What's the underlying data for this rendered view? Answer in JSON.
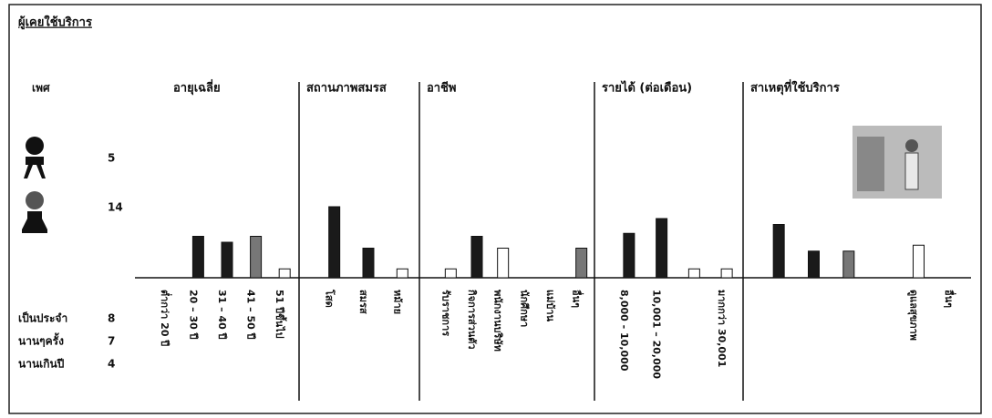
{
  "title": "ผู้เคยใช้บริการ",
  "gender": {
    "label": "เพศ",
    "counts": [
      5,
      14
    ]
  },
  "frequency": [
    {
      "label": "เป็นประจำ",
      "count": 8
    },
    {
      "label": "นานๆครั้ง",
      "count": 7
    },
    {
      "label": "นานเกินปี",
      "count": 4
    }
  ],
  "panels": [
    {
      "title": "อายุเฉลี่ย",
      "bars": [
        {
          "label": "ต่ำกว่า 20 ปี",
          "value": 0,
          "color": "#1a1a1a"
        },
        {
          "label": "20 – 30 ปี",
          "value": 7,
          "color": "#1a1a1a"
        },
        {
          "label": "31 – 40 ปี",
          "value": 6,
          "color": "#1a1a1a"
        },
        {
          "label": "41 – 50 ปี",
          "value": 7,
          "color": "#777777"
        },
        {
          "label": "51 ปีขึ้นไป",
          "value": 1.5,
          "color": "#ffffff"
        }
      ]
    },
    {
      "title": "สถานภาพสมรส",
      "bars": [
        {
          "label": "โสด",
          "value": 12,
          "color": "#1a1a1a"
        },
        {
          "label": "สมรส",
          "value": 5,
          "color": "#1a1a1a"
        },
        {
          "label": "หม้าย",
          "value": 1.5,
          "color": "#ffffff"
        }
      ]
    },
    {
      "title": "อาชีพ",
      "bars": [
        {
          "label": "รับราชการ",
          "value": 1.5,
          "color": "#ffffff"
        },
        {
          "label": "กิจการส่วนตัว",
          "value": 7,
          "color": "#1a1a1a"
        },
        {
          "label": "พนักงานบริษัท",
          "value": 5,
          "color": "#ffffff"
        },
        {
          "label": "นักศึกษา",
          "value": 0,
          "color": "#1a1a1a"
        },
        {
          "label": "แม่บ้าน",
          "value": 0,
          "color": "#1a1a1a"
        },
        {
          "label": "อื่นๆ",
          "value": 5,
          "color": "#777777"
        }
      ]
    },
    {
      "title": "รายได้ (ต่อเดือน)",
      "bars": [
        {
          "label": "8,000 - 10,000",
          "value": 7.5,
          "color": "#1a1a1a"
        },
        {
          "label": "10,001 – 20,000",
          "value": 10,
          "color": "#1a1a1a"
        },
        {
          "label": null,
          "value": 1.5,
          "color": "#ffffff"
        },
        {
          "label": "มากกว่า 30,001",
          "value": 1.5,
          "color": "#ffffff"
        }
      ]
    },
    {
      "title": "สาเหตุที่ใช้บริการ",
      "bars": [
        {
          "label": null,
          "value": 9,
          "color": "#1a1a1a"
        },
        {
          "label": null,
          "value": 4.5,
          "color": "#1a1a1a"
        },
        {
          "label": null,
          "value": 4.5,
          "color": "#777777"
        },
        {
          "label": null,
          "value": 0,
          "color": "#1a1a1a"
        },
        {
          "label": "ดูแลสุขภาพ",
          "value": 5.5,
          "color": "#ffffff"
        },
        {
          "label": "อื่นๆ",
          "value": 0,
          "color": "#1a1a1a"
        }
      ]
    }
  ]
}
